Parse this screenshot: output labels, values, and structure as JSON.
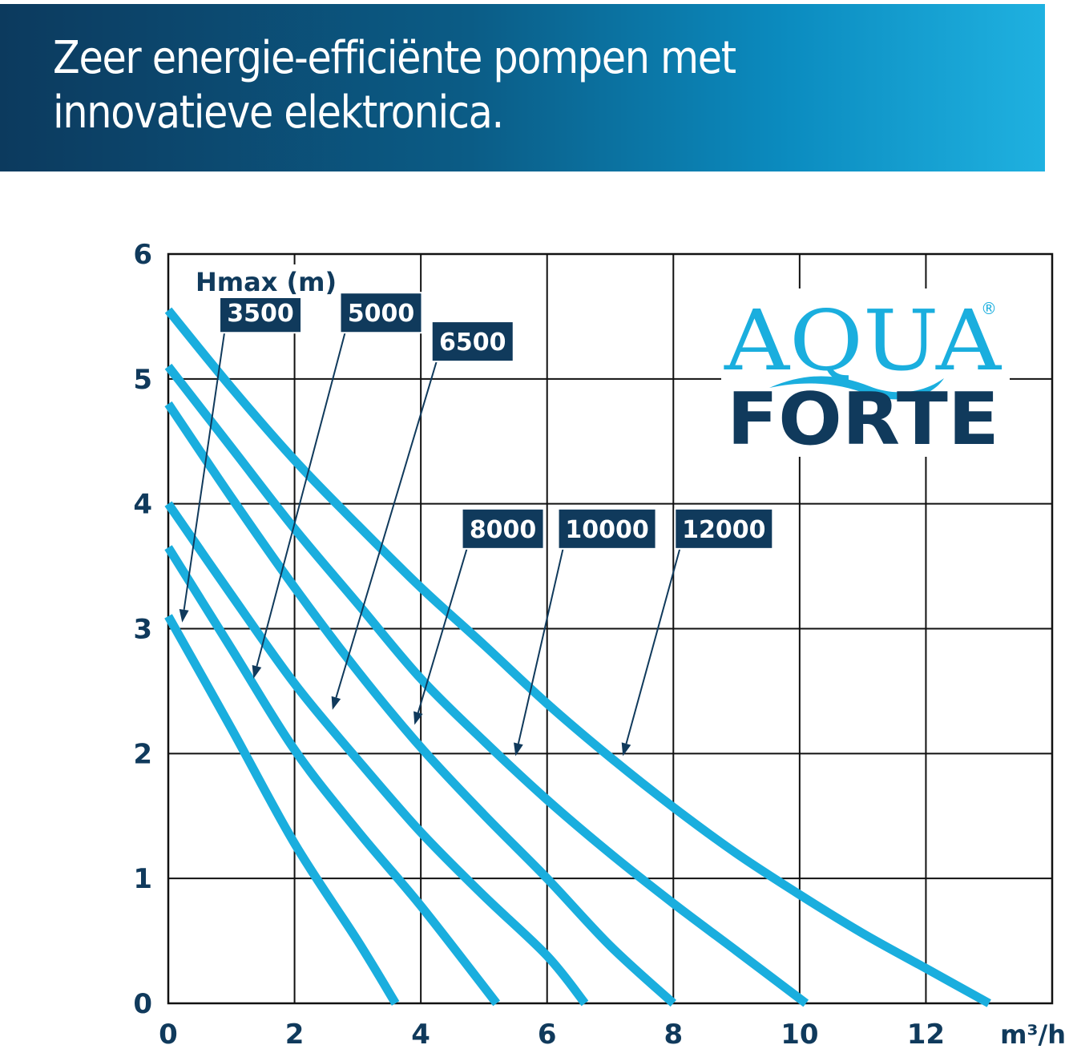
{
  "banner": {
    "title": "Zeer energie-efficiënte pompen met innovatieve elektronica."
  },
  "logo": {
    "aqua_text": "AQUA",
    "forte_text": "FORTE",
    "registered_mark": "®",
    "colors": {
      "aqua": "#1aaede",
      "forte": "#103a5c",
      "wave": "#1aaede"
    }
  },
  "chart_data": {
    "type": "line",
    "ylabel": "Hmax (m)",
    "xlabel": "m³/h",
    "xlim": [
      0,
      14
    ],
    "ylim": [
      0,
      6
    ],
    "x_ticks": [
      0,
      2,
      4,
      6,
      8,
      10,
      12
    ],
    "y_ticks": [
      0,
      1,
      2,
      3,
      4,
      5,
      6
    ],
    "x_grid": [
      0,
      2,
      4,
      6,
      8,
      10,
      12,
      14
    ],
    "y_grid": [
      0,
      1,
      2,
      3,
      4,
      5,
      6
    ],
    "grid": true,
    "line_color": "#1aaede",
    "label_box_color": "#103a5c",
    "series": [
      {
        "name": "3500",
        "x": [
          0,
          1,
          2,
          3,
          3.6
        ],
        "y": [
          3.1,
          2.2,
          1.28,
          0.5,
          0
        ]
      },
      {
        "name": "5000",
        "x": [
          0,
          1,
          2,
          3,
          4,
          5.2
        ],
        "y": [
          3.65,
          2.84,
          2.03,
          1.38,
          0.78,
          0
        ]
      },
      {
        "name": "6500",
        "x": [
          0,
          1,
          2,
          3,
          4,
          5,
          6,
          6.6
        ],
        "y": [
          4.0,
          3.27,
          2.56,
          1.95,
          1.37,
          0.86,
          0.38,
          0
        ]
      },
      {
        "name": "8000",
        "x": [
          0,
          1,
          2,
          3,
          4,
          5,
          6,
          7,
          8
        ],
        "y": [
          4.8,
          4.05,
          3.33,
          2.66,
          2.05,
          1.51,
          1.0,
          0.46,
          0
        ]
      },
      {
        "name": "10000",
        "x": [
          0,
          1,
          2,
          3,
          4,
          5,
          6,
          7,
          8,
          9,
          10.1
        ],
        "y": [
          5.1,
          4.45,
          3.8,
          3.2,
          2.6,
          2.1,
          1.63,
          1.2,
          0.8,
          0.42,
          0
        ]
      },
      {
        "name": "12000",
        "x": [
          0,
          1,
          2,
          3,
          4,
          5,
          6,
          7,
          8,
          9,
          10,
          11,
          12,
          13
        ],
        "y": [
          5.55,
          4.93,
          4.35,
          3.83,
          3.33,
          2.87,
          2.4,
          1.97,
          1.57,
          1.2,
          0.87,
          0.56,
          0.28,
          0
        ]
      }
    ],
    "series_labels": [
      {
        "name": "3500",
        "box_center": [
          1.46,
          5.53
        ],
        "arrow_to": [
          0.22,
          3.05
        ]
      },
      {
        "name": "5000",
        "box_center": [
          3.37,
          5.53
        ],
        "arrow_to": [
          1.35,
          2.6
        ]
      },
      {
        "name": "6500",
        "box_center": [
          4.82,
          5.3
        ],
        "arrow_to": [
          2.6,
          2.35
        ]
      },
      {
        "name": "8000",
        "box_center": [
          5.3,
          3.8
        ],
        "arrow_to": [
          3.9,
          2.23
        ]
      },
      {
        "name": "10000",
        "box_center": [
          6.95,
          3.8
        ],
        "arrow_to": [
          5.5,
          1.98
        ]
      },
      {
        "name": "12000",
        "box_center": [
          8.8,
          3.8
        ],
        "arrow_to": [
          7.2,
          1.98
        ]
      }
    ]
  }
}
